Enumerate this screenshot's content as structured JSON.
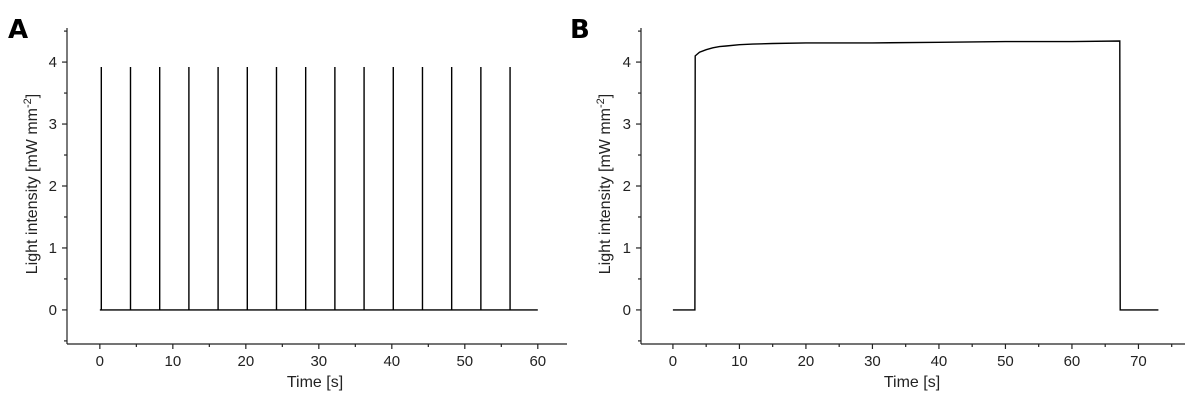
{
  "chart_data": [
    {
      "panel": "A",
      "type": "line",
      "xlabel": "Time [s]",
      "ylabel": "Light intensity [mW mm",
      "ylabel_unit_exponent": "-2",
      "ylabel_close": "]",
      "xlim": [
        -4.5,
        64
      ],
      "ylim": [
        -0.55,
        4.55
      ],
      "xticks": [
        0,
        10,
        20,
        30,
        40,
        50,
        60
      ],
      "yticks": [
        0,
        1,
        2,
        3,
        4
      ],
      "baseline": 0,
      "x_start": 0,
      "x_end": 60,
      "pulse_times": [
        0.2,
        4.2,
        8.2,
        12.2,
        16.2,
        20.2,
        24.2,
        28.2,
        32.2,
        36.2,
        40.2,
        44.2,
        48.2,
        52.2,
        56.2
      ],
      "pulse_peak": 3.92
    },
    {
      "panel": "B",
      "type": "line",
      "xlabel": "Time [s]",
      "ylabel": "Light intensity [mW mm",
      "ylabel_unit_exponent": "-2",
      "ylabel_close": "]",
      "xlim": [
        -4.8,
        77
      ],
      "ylim": [
        -0.55,
        4.55
      ],
      "xticks": [
        0,
        10,
        20,
        30,
        40,
        50,
        60,
        70
      ],
      "yticks": [
        0,
        1,
        2,
        3,
        4
      ],
      "x": [
        0,
        3.3,
        3.35,
        4,
        5,
        6,
        7,
        8,
        10,
        12,
        15,
        20,
        30,
        40,
        50,
        60,
        67.2,
        67.25,
        73
      ],
      "y": [
        0,
        0,
        4.1,
        4.16,
        4.2,
        4.23,
        4.25,
        4.26,
        4.28,
        4.29,
        4.3,
        4.31,
        4.31,
        4.32,
        4.33,
        4.33,
        4.34,
        0,
        0
      ]
    }
  ]
}
